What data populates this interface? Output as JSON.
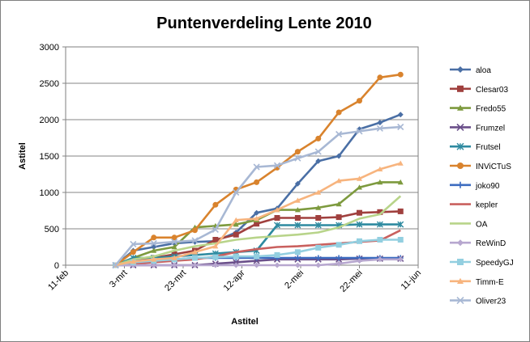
{
  "chart_data": {
    "type": "line",
    "title": "Puntenverdeling Lente 2010",
    "xlabel": "Astitel",
    "ylabel": "Astitel",
    "ylim": [
      0,
      3000
    ],
    "yticks": [
      0,
      500,
      1000,
      1500,
      2000,
      2500,
      3000
    ],
    "xticks": [
      "11-feb",
      "3-mrt",
      "23-mrt",
      "12-apr",
      "2-mei",
      "22-mei",
      "11-jun"
    ],
    "xlim": [
      "2010-02-11",
      "2010-06-11"
    ],
    "grid": "horizontal",
    "legend_position": "right",
    "x": [
      "2010-02-28",
      "2010-03-06",
      "2010-03-13",
      "2010-03-20",
      "2010-03-27",
      "2010-04-03",
      "2010-04-10",
      "2010-04-17",
      "2010-04-24",
      "2010-05-01",
      "2010-05-08",
      "2010-05-15",
      "2010-05-22",
      "2010-05-29",
      "2010-06-05"
    ],
    "series": [
      {
        "name": "aloa",
        "color": "#4a6fa5",
        "marker": "diamond",
        "values": [
          0,
          200,
          250,
          300,
          320,
          330,
          450,
          720,
          780,
          1120,
          1430,
          1500,
          1870,
          1960,
          2070
        ]
      },
      {
        "name": "Clesar03",
        "color": "#a0403e",
        "marker": "square",
        "values": [
          0,
          50,
          100,
          150,
          200,
          350,
          420,
          570,
          650,
          650,
          650,
          660,
          720,
          730,
          740
        ]
      },
      {
        "name": "Fredo55",
        "color": "#7d9a3e",
        "marker": "triangle",
        "values": [
          0,
          100,
          200,
          250,
          520,
          540,
          560,
          620,
          760,
          760,
          790,
          840,
          1070,
          1140,
          1140
        ]
      },
      {
        "name": "Frumzel",
        "color": "#6a4f8a",
        "marker": "x",
        "values": [
          0,
          0,
          0,
          0,
          0,
          20,
          40,
          60,
          80,
          80,
          80,
          80,
          90,
          90,
          90
        ]
      },
      {
        "name": "Frutsel",
        "color": "#2e8aa0",
        "marker": "star",
        "values": [
          0,
          100,
          100,
          120,
          140,
          160,
          180,
          200,
          550,
          550,
          550,
          550,
          560,
          560,
          560
        ]
      },
      {
        "name": "INViCTuS",
        "color": "#d9832d",
        "marker": "circle",
        "values": [
          0,
          180,
          380,
          380,
          480,
          830,
          1040,
          1140,
          1340,
          1560,
          1740,
          2100,
          2260,
          2580,
          2620
        ]
      },
      {
        "name": "joko90",
        "color": "#3d6cc0",
        "marker": "plus",
        "values": [
          0,
          60,
          70,
          80,
          100,
          100,
          100,
          100,
          100,
          100,
          100,
          100,
          100,
          100,
          100
        ]
      },
      {
        "name": "kepler",
        "color": "#c9605e",
        "marker": "none",
        "values": [
          0,
          20,
          40,
          60,
          80,
          120,
          180,
          220,
          250,
          260,
          280,
          300,
          320,
          340,
          480
        ]
      },
      {
        "name": "OA",
        "color": "#b8d48a",
        "marker": "none",
        "values": [
          0,
          80,
          120,
          200,
          260,
          300,
          350,
          380,
          400,
          420,
          450,
          520,
          640,
          700,
          950
        ]
      },
      {
        "name": "ReWinD",
        "color": "#b7a7cf",
        "marker": "diamond",
        "values": [
          0,
          0,
          0,
          0,
          0,
          0,
          0,
          0,
          0,
          0,
          0,
          20,
          60,
          80,
          80
        ]
      },
      {
        "name": "SpeedyGJ",
        "color": "#93cfe0",
        "marker": "square",
        "values": [
          0,
          40,
          60,
          80,
          100,
          110,
          120,
          120,
          140,
          180,
          240,
          280,
          330,
          350,
          350
        ]
      },
      {
        "name": "Timm-E",
        "color": "#f7b47e",
        "marker": "triangle",
        "values": [
          0,
          50,
          80,
          100,
          180,
          260,
          620,
          640,
          760,
          890,
          1000,
          1160,
          1190,
          1320,
          1400
        ]
      },
      {
        "name": "Oliver23",
        "color": "#a8b8d4",
        "marker": "x",
        "values": [
          0,
          290,
          300,
          320,
          340,
          490,
          1000,
          1350,
          1370,
          1470,
          1560,
          1800,
          1840,
          1880,
          1900
        ]
      }
    ]
  }
}
